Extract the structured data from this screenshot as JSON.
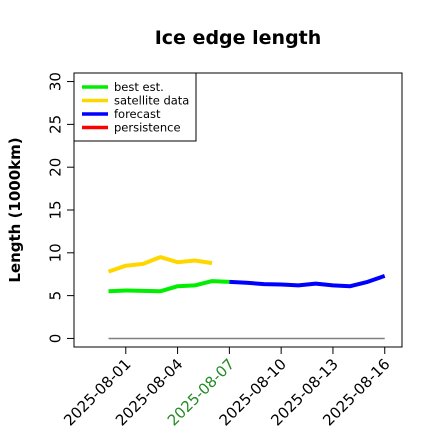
{
  "chart_data": {
    "type": "line",
    "title": "Ice edge length",
    "ylabel": "Length (1000km)",
    "xlabel": "",
    "ylim": [
      -1,
      31
    ],
    "xlim": [
      "2025-07-29",
      "2025-08-17"
    ],
    "yticks": [
      0,
      5,
      10,
      15,
      20,
      25,
      30
    ],
    "yticks_rotated": true,
    "xticks": [
      {
        "label": "2025-08-01",
        "color": "#000000"
      },
      {
        "label": "2025-08-04",
        "color": "#000000"
      },
      {
        "label": "2025-08-07",
        "color": "#228b22"
      },
      {
        "label": "2025-08-10",
        "color": "#000000"
      },
      {
        "label": "2025-08-13",
        "color": "#000000"
      },
      {
        "label": "2025-08-16",
        "color": "#000000"
      }
    ],
    "grid": false,
    "legend_position": "top-left",
    "baseline": {
      "y": 0,
      "x_from": "2025-07-31",
      "x_to": "2025-08-16",
      "color": "#808080"
    },
    "series": [
      {
        "name": "best est.",
        "color": "#00ee00",
        "x": [
          "2025-07-31",
          "2025-08-01",
          "2025-08-02",
          "2025-08-03",
          "2025-08-04",
          "2025-08-05",
          "2025-08-06",
          "2025-08-07"
        ],
        "y": [
          5.5,
          5.6,
          5.55,
          5.5,
          6.1,
          6.2,
          6.7,
          6.6
        ]
      },
      {
        "name": "satellite data",
        "color": "#ffd700",
        "x": [
          "2025-07-31",
          "2025-08-01",
          "2025-08-02",
          "2025-08-03",
          "2025-08-04",
          "2025-08-05",
          "2025-08-06"
        ],
        "y": [
          7.8,
          8.5,
          8.7,
          9.5,
          8.9,
          9.1,
          8.8
        ]
      },
      {
        "name": "forecast",
        "color": "#0000ff",
        "x": [
          "2025-08-07",
          "2025-08-08",
          "2025-08-09",
          "2025-08-10",
          "2025-08-11",
          "2025-08-12",
          "2025-08-13",
          "2025-08-14",
          "2025-08-15",
          "2025-08-16"
        ],
        "y": [
          6.6,
          6.5,
          6.35,
          6.3,
          6.2,
          6.4,
          6.2,
          6.1,
          6.6,
          7.3
        ]
      },
      {
        "name": "persistence",
        "color": "#ff0000",
        "x": [],
        "y": []
      }
    ]
  }
}
